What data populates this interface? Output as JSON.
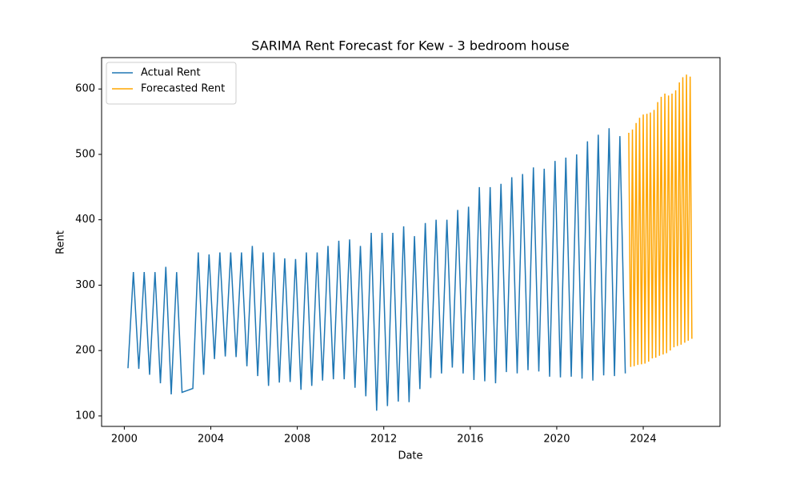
{
  "chart_data": {
    "type": "line",
    "title": "SARIMA Rent Forecast for Kew - 3 bedroom house",
    "x_label": "Date",
    "y_label": "Rent",
    "xlim": [
      1998.95,
      2027.55
    ],
    "xticks": [
      2000,
      2004,
      2008,
      2012,
      2016,
      2020,
      2024
    ],
    "ylim": [
      84,
      648
    ],
    "yticks": [
      100,
      200,
      300,
      400,
      500,
      600
    ],
    "legend": "upper left",
    "grid": false,
    "series": [
      {
        "name": "Actual Rent",
        "color": "#1f77b4",
        "x": [
          2000.17,
          2000.42,
          2000.67,
          2000.92,
          2001.17,
          2001.42,
          2001.67,
          2001.92,
          2002.17,
          2002.42,
          2002.67,
          2003.17,
          2003.42,
          2003.67,
          2003.92,
          2004.17,
          2004.42,
          2004.67,
          2004.92,
          2005.17,
          2005.42,
          2005.67,
          2005.92,
          2006.17,
          2006.42,
          2006.67,
          2006.92,
          2007.17,
          2007.42,
          2007.67,
          2007.92,
          2008.17,
          2008.42,
          2008.67,
          2008.92,
          2009.17,
          2009.42,
          2009.67,
          2009.92,
          2010.17,
          2010.42,
          2010.67,
          2010.92,
          2011.17,
          2011.42,
          2011.67,
          2011.92,
          2012.17,
          2012.42,
          2012.67,
          2012.92,
          2013.17,
          2013.42,
          2013.67,
          2013.92,
          2014.17,
          2014.42,
          2014.67,
          2014.92,
          2015.17,
          2015.42,
          2015.67,
          2015.92,
          2016.17,
          2016.42,
          2016.67,
          2016.92,
          2017.17,
          2017.42,
          2017.67,
          2017.92,
          2018.17,
          2018.42,
          2018.67,
          2018.92,
          2019.17,
          2019.42,
          2019.67,
          2019.92,
          2020.17,
          2020.42,
          2020.67,
          2020.92,
          2021.17,
          2021.42,
          2021.67,
          2021.92,
          2022.17,
          2022.42,
          2022.67,
          2022.92,
          2023.17
        ],
        "values": [
          173,
          320,
          172,
          320,
          163,
          320,
          150,
          328,
          133,
          320,
          136,
          142,
          350,
          163,
          347,
          187,
          350,
          191,
          350,
          190,
          350,
          176,
          360,
          161,
          350,
          146,
          350,
          151,
          341,
          152,
          340,
          140,
          350,
          146,
          350,
          154,
          360,
          156,
          368,
          156,
          370,
          143,
          360,
          130,
          380,
          108,
          380,
          115,
          380,
          122,
          390,
          121,
          375,
          141,
          395,
          158,
          400,
          165,
          400,
          174,
          415,
          165,
          420,
          155,
          450,
          153,
          450,
          150,
          455,
          167,
          465,
          165,
          470,
          170,
          480,
          168,
          478,
          160,
          490,
          159,
          495,
          160,
          500,
          157,
          520,
          154,
          530,
          162,
          540,
          161,
          528,
          165
        ]
      },
      {
        "name": "Forecasted Rent",
        "color": "#ffa500",
        "x": [
          2023.33,
          2023.42,
          2023.5,
          2023.58,
          2023.67,
          2023.75,
          2023.83,
          2023.92,
          2024.0,
          2024.08,
          2024.17,
          2024.25,
          2024.33,
          2024.42,
          2024.5,
          2024.58,
          2024.67,
          2024.75,
          2024.83,
          2024.92,
          2025.0,
          2025.08,
          2025.17,
          2025.25,
          2025.33,
          2025.42,
          2025.5,
          2025.58,
          2025.67,
          2025.75,
          2025.83,
          2025.92,
          2026.0,
          2026.08,
          2026.17,
          2026.25
        ],
        "values": [
          533,
          175,
          538,
          176,
          548,
          178,
          556,
          179,
          561,
          180,
          562,
          183,
          564,
          188,
          568,
          189,
          580,
          192,
          588,
          194,
          593,
          196,
          590,
          200,
          593,
          205,
          598,
          207,
          610,
          209,
          618,
          212,
          622,
          215,
          619,
          218
        ]
      }
    ]
  }
}
